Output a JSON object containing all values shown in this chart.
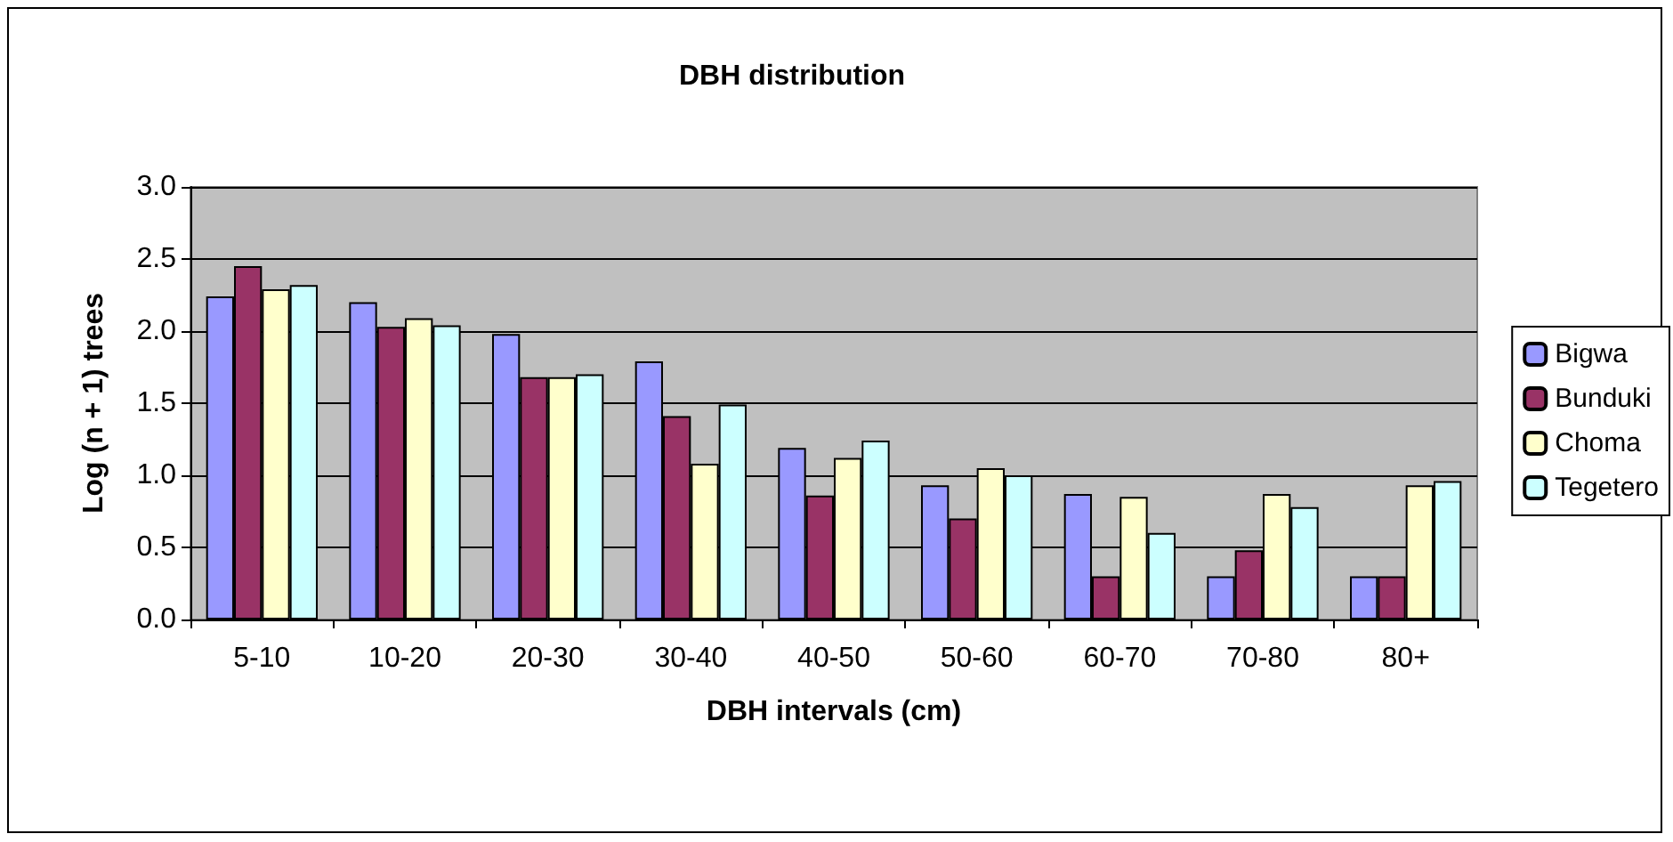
{
  "chart_data": {
    "type": "bar",
    "title": "DBH distribution",
    "xlabel": "DBH intervals (cm)",
    "ylabel": "Log (n + 1) trees",
    "categories": [
      "5-10",
      "10-20",
      "20-30",
      "30-40",
      "40-50",
      "50-60",
      "60-70",
      "70-80",
      "80+"
    ],
    "series": [
      {
        "name": "Bigwa",
        "color": "#9999ff",
        "values": [
          2.24,
          2.2,
          1.98,
          1.79,
          1.19,
          0.93,
          0.87,
          0.3,
          0.3
        ]
      },
      {
        "name": "Bunduki",
        "color": "#993366",
        "values": [
          2.45,
          2.03,
          1.68,
          1.41,
          0.86,
          0.7,
          0.3,
          0.48,
          0.3
        ]
      },
      {
        "name": "Choma",
        "color": "#ffffcc",
        "values": [
          2.29,
          2.09,
          1.68,
          1.08,
          1.12,
          1.05,
          0.85,
          0.87,
          0.93
        ]
      },
      {
        "name": "Tegetero",
        "color": "#ccffff",
        "values": [
          2.32,
          2.04,
          1.7,
          1.49,
          1.24,
          1.0,
          0.6,
          0.78,
          0.96
        ]
      }
    ],
    "ylim": [
      0,
      3
    ],
    "yticks": [
      {
        "value": 0,
        "label": "0.0"
      },
      {
        "value": 0.5,
        "label": "0.5"
      },
      {
        "value": 1,
        "label": "1.0"
      },
      {
        "value": 1.5,
        "label": "1.5"
      },
      {
        "value": 2,
        "label": "2.0"
      },
      {
        "value": 2.5,
        "label": "2.5"
      },
      {
        "value": 3,
        "label": "3.0"
      }
    ],
    "grid": "y",
    "legend": "right"
  }
}
